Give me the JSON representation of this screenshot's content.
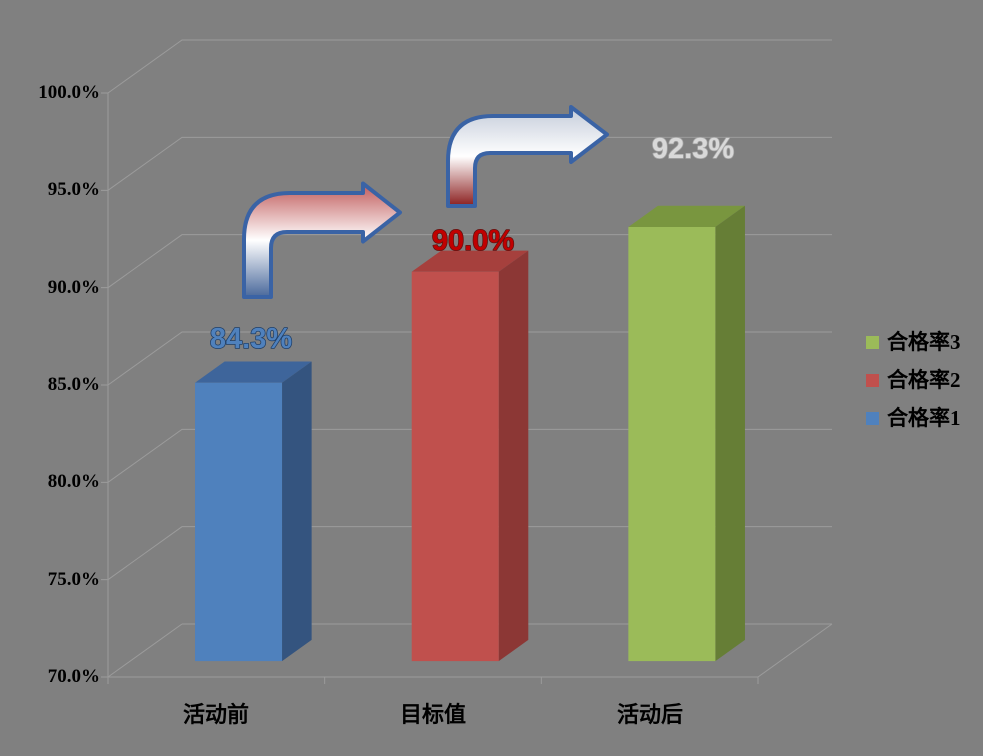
{
  "chart_data": {
    "type": "bar",
    "variant": "3d-clustered-column",
    "title": "",
    "categories": [
      "活动前",
      "目标值",
      "活动后"
    ],
    "series": [
      {
        "name": "合格率1",
        "category": "活动前",
        "value": 84.3,
        "label": "84.3%",
        "front_color": "#4F81BD",
        "top_color": "#3E659B",
        "side_color": "#34547F",
        "label_color": "#4F81BD",
        "label_outline": "#1F3E66"
      },
      {
        "name": "合格率2",
        "category": "目标值",
        "value": 90.0,
        "label": "90.0%",
        "front_color": "#C0504D",
        "top_color": "#A6403D",
        "side_color": "#8C3735",
        "label_color": "#C00000",
        "label_outline": "#5F1311"
      },
      {
        "name": "合格率3",
        "category": "活动后",
        "value": 92.3,
        "label": "92.3%",
        "front_color": "#9BBB59",
        "top_color": "#79963F",
        "side_color": "#667E36",
        "label_color": "#D9D9D9",
        "label_outline": "#A8A8A8"
      }
    ],
    "y_axis": {
      "min": 70,
      "max": 100,
      "step": 5,
      "unit": "%",
      "tick_labels": [
        "100.0%",
        "95.0%",
        "90.0%",
        "85.0%",
        "80.0%",
        "75.0%",
        "70.0%"
      ]
    },
    "legend": {
      "position": "right",
      "items": [
        {
          "label": "合格率3",
          "color": "#9BBB59"
        },
        {
          "label": "合格率2",
          "color": "#C0504D"
        },
        {
          "label": "合格率1",
          "color": "#4F81BD"
        }
      ]
    },
    "gridlines": true,
    "background_color": "#808080",
    "gridline_color": "#9B9B9B"
  },
  "annotations": {
    "arrows": [
      {
        "name": "arrow-before-to-target",
        "direction": "up-right",
        "top_color": "#C05A5A",
        "mid_color": "#FFFFFF",
        "bottom_color": "#49689B",
        "border_color": "#3A63A5"
      },
      {
        "name": "arrow-target-to-after",
        "direction": "up-right",
        "top_color": "#C4CCDA",
        "mid_color": "#FFFFFF",
        "bottom_color": "#8B1F1F",
        "border_color": "#3A63A5"
      }
    ]
  }
}
